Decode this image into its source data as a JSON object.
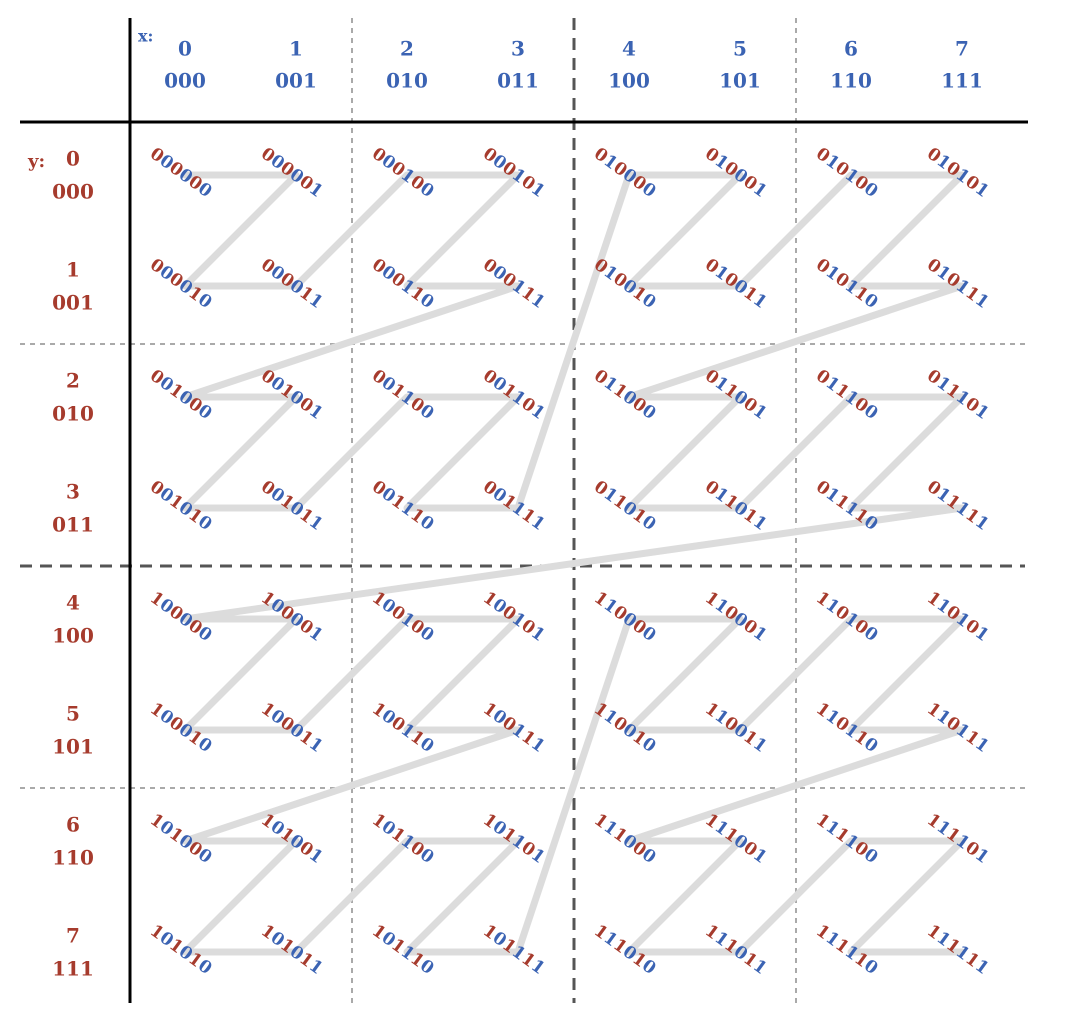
{
  "x_label": "x:",
  "y_label": "y:",
  "columns": [
    {
      "index": "0",
      "bits": "000"
    },
    {
      "index": "1",
      "bits": "001"
    },
    {
      "index": "2",
      "bits": "010"
    },
    {
      "index": "3",
      "bits": "011"
    },
    {
      "index": "4",
      "bits": "100"
    },
    {
      "index": "5",
      "bits": "101"
    },
    {
      "index": "6",
      "bits": "110"
    },
    {
      "index": "7",
      "bits": "111"
    }
  ],
  "rows": [
    {
      "index": "0",
      "bits": "000"
    },
    {
      "index": "1",
      "bits": "001"
    },
    {
      "index": "2",
      "bits": "010"
    },
    {
      "index": "3",
      "bits": "011"
    },
    {
      "index": "4",
      "bits": "100"
    },
    {
      "index": "5",
      "bits": "101"
    },
    {
      "index": "6",
      "bits": "110"
    },
    {
      "index": "7",
      "bits": "111"
    }
  ],
  "cells": [
    [
      "000000",
      "000001",
      "000100",
      "000101",
      "010000",
      "010001",
      "010100",
      "010101"
    ],
    [
      "000010",
      "000011",
      "000110",
      "000111",
      "010010",
      "010011",
      "010110",
      "010111"
    ],
    [
      "001000",
      "001001",
      "001100",
      "001101",
      "011000",
      "011001",
      "011100",
      "011101"
    ],
    [
      "001010",
      "001011",
      "001110",
      "001111",
      "011010",
      "011011",
      "011110",
      "011111"
    ],
    [
      "100000",
      "100001",
      "100100",
      "100101",
      "110000",
      "110001",
      "110100",
      "110101"
    ],
    [
      "100010",
      "100011",
      "100110",
      "100111",
      "110010",
      "110011",
      "110110",
      "110111"
    ],
    [
      "101000",
      "101001",
      "101100",
      "101101",
      "111000",
      "111001",
      "111100",
      "111101"
    ],
    [
      "101010",
      "101011",
      "101110",
      "101111",
      "111010",
      "111011",
      "111110",
      "111111"
    ]
  ]
}
